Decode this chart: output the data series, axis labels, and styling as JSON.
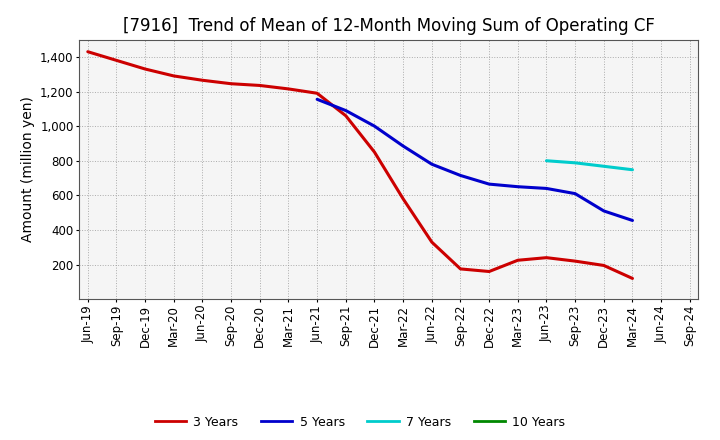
{
  "title": "[7916]  Trend of Mean of 12-Month Moving Sum of Operating CF",
  "ylabel": "Amount (million yen)",
  "background_color": "#ffffff",
  "plot_bg_color": "#f5f5f5",
  "grid_color": "#999999",
  "x_labels": [
    "Jun-19",
    "Sep-19",
    "Dec-19",
    "Mar-20",
    "Jun-20",
    "Sep-20",
    "Dec-20",
    "Mar-21",
    "Jun-21",
    "Sep-21",
    "Dec-21",
    "Mar-22",
    "Jun-22",
    "Sep-22",
    "Dec-22",
    "Mar-23",
    "Jun-23",
    "Sep-23",
    "Dec-23",
    "Mar-24",
    "Jun-24",
    "Sep-24"
  ],
  "series_3y": {
    "color": "#cc0000",
    "label": "3 Years",
    "values": [
      1430,
      1380,
      1330,
      1290,
      1265,
      1245,
      1235,
      1215,
      1190,
      1060,
      850,
      580,
      330,
      175,
      160,
      225,
      240,
      220,
      195,
      120,
      null,
      null
    ]
  },
  "series_5y": {
    "color": "#0000cc",
    "label": "5 Years",
    "values": [
      null,
      null,
      null,
      null,
      null,
      null,
      null,
      null,
      1155,
      1090,
      1000,
      885,
      780,
      715,
      665,
      650,
      640,
      610,
      510,
      455,
      null,
      null
    ]
  },
  "series_7y": {
    "color": "#00cccc",
    "label": "7 Years",
    "values": [
      null,
      null,
      null,
      null,
      null,
      null,
      null,
      null,
      null,
      null,
      null,
      null,
      null,
      null,
      null,
      null,
      800,
      788,
      768,
      748,
      null,
      null
    ]
  },
  "series_10y": {
    "color": "#008800",
    "label": "10 Years",
    "values": [
      null,
      null,
      null,
      null,
      null,
      null,
      null,
      null,
      null,
      null,
      null,
      null,
      null,
      null,
      null,
      null,
      null,
      null,
      null,
      null,
      null,
      null
    ]
  },
  "ylim": [
    0,
    1500
  ],
  "yticks": [
    200,
    400,
    600,
    800,
    1000,
    1200,
    1400
  ],
  "title_fontsize": 12,
  "axis_label_fontsize": 10,
  "tick_fontsize": 8.5,
  "legend_fontsize": 9,
  "linewidth": 2.2
}
